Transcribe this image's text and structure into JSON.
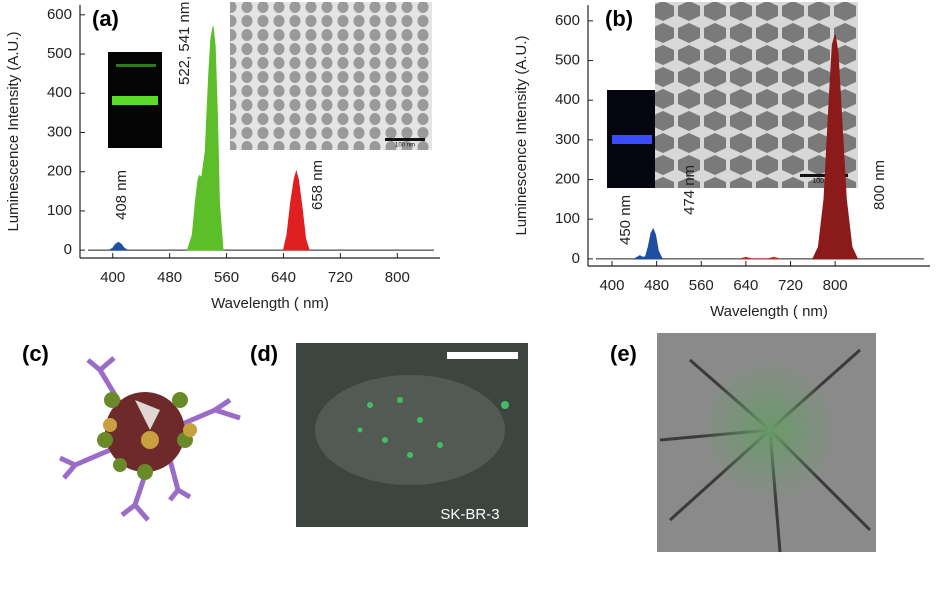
{
  "chart_data": [
    {
      "type": "area",
      "label": "(a)",
      "x_label": "Wavelength ( nm)",
      "y_label": "Luminescence Intensity (A.U.)",
      "xlim": [
        354,
        860
      ],
      "ylim": [
        -20,
        625
      ],
      "xticks": [
        400,
        480,
        560,
        640,
        720,
        800
      ],
      "yticks": [
        0,
        100,
        200,
        300,
        400,
        500,
        600
      ],
      "annotations": [
        "408 nm",
        "522, 541 nm",
        "658 nm"
      ],
      "scale_label": "100 nm",
      "series": [
        {
          "color": "#1f4fa0",
          "x": [
            395,
            400,
            404,
            408,
            412,
            416,
            421
          ],
          "values": [
            0,
            5,
            15,
            20,
            15,
            5,
            0
          ]
        },
        {
          "color": "#5cbf2a",
          "x": [
            505,
            512,
            516,
            520,
            522,
            525,
            530,
            535,
            538,
            541,
            544,
            547,
            550,
            555
          ],
          "values": [
            0,
            40,
            120,
            180,
            190,
            185,
            250,
            450,
            540,
            570,
            520,
            350,
            120,
            0
          ]
        },
        {
          "color": "#e02020",
          "x": [
            640,
            645,
            650,
            655,
            658,
            661,
            666,
            671,
            676
          ],
          "values": [
            0,
            40,
            120,
            180,
            200,
            180,
            110,
            30,
            0
          ]
        }
      ]
    },
    {
      "type": "area",
      "label": "(b)",
      "x_label": "Wavelength ( nm)",
      "y_label": "Luminescence Intensity (A.U.)",
      "xlim": [
        357,
        970
      ],
      "ylim": [
        -18,
        640
      ],
      "xticks": [
        400,
        480,
        560,
        640,
        720,
        800
      ],
      "yticks": [
        0,
        100,
        200,
        300,
        400,
        500,
        600
      ],
      "annotations": [
        "450 nm",
        "474 nm",
        "800 nm"
      ],
      "scale_label": "100 nm",
      "series": [
        {
          "color": "#1f4fa0",
          "x": [
            440,
            445,
            450,
            455,
            460,
            465,
            470,
            474,
            478,
            483,
            490
          ],
          "values": [
            0,
            4,
            8,
            4,
            5,
            30,
            65,
            75,
            60,
            20,
            0
          ]
        },
        {
          "color": "#c0302a",
          "x": [
            630,
            640,
            650,
            680,
            690,
            700
          ],
          "values": [
            0,
            4,
            0,
            0,
            4,
            0
          ]
        },
        {
          "color": "#8b1a1a",
          "x": [
            760,
            770,
            780,
            790,
            795,
            800,
            805,
            810,
            820,
            830,
            840
          ],
          "values": [
            0,
            30,
            150,
            420,
            540,
            565,
            520,
            400,
            150,
            30,
            0
          ]
        }
      ]
    }
  ],
  "panel_labels": [
    "(c)",
    "(d)",
    "(e)"
  ],
  "cell_line": "SK-BR-3"
}
